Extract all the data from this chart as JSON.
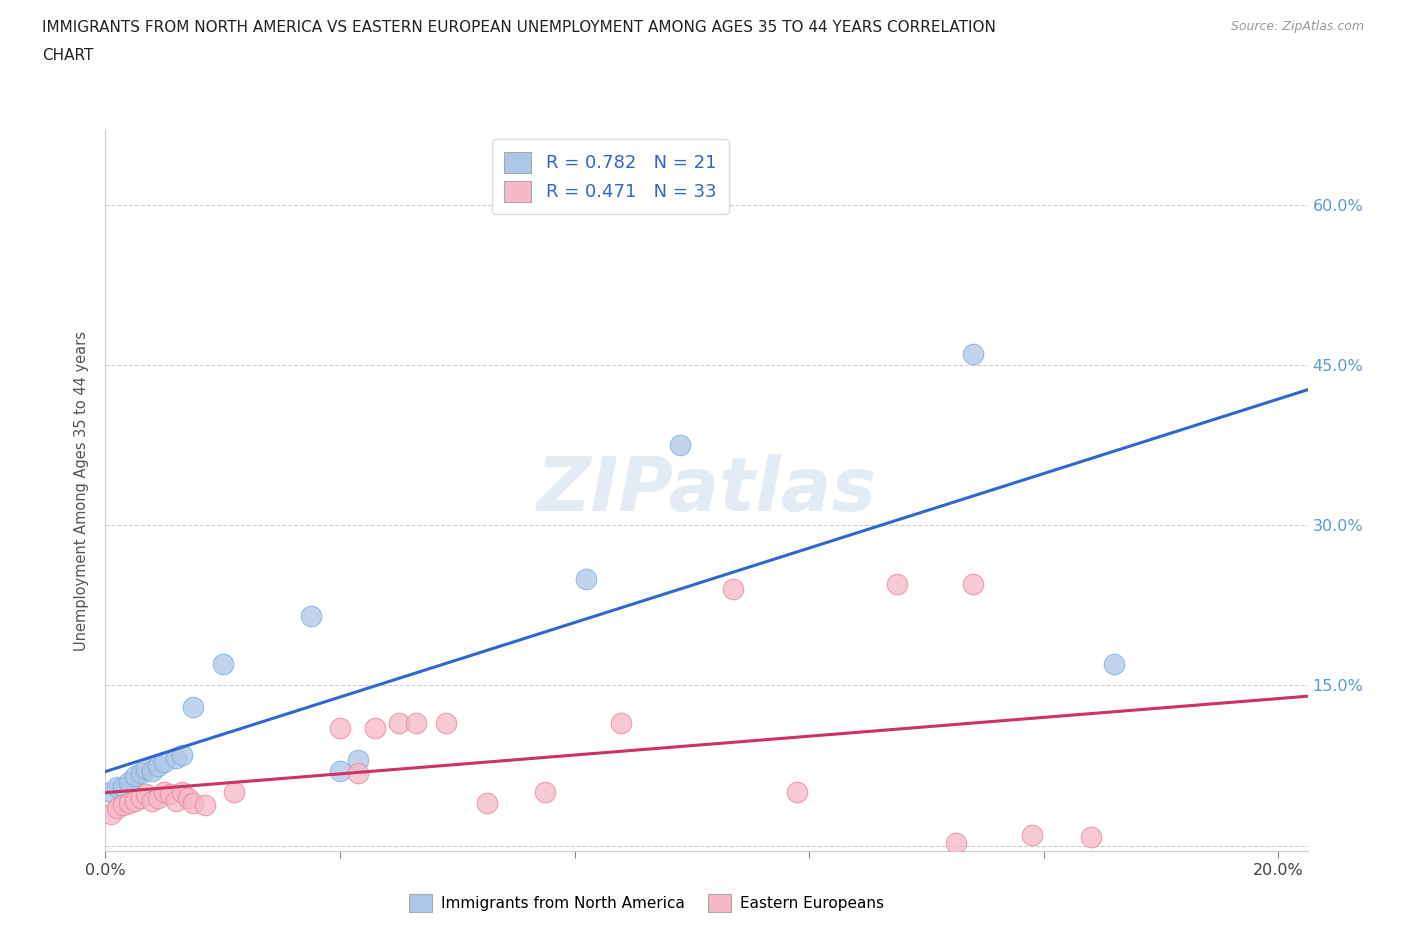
{
  "title_line1": "IMMIGRANTS FROM NORTH AMERICA VS EASTERN EUROPEAN UNEMPLOYMENT AMONG AGES 35 TO 44 YEARS CORRELATION",
  "title_line2": "CHART",
  "source": "Source: ZipAtlas.com",
  "ylabel": "Unemployment Among Ages 35 to 44 years",
  "xlim": [
    0.0,
    0.205
  ],
  "ylim": [
    -0.005,
    0.67
  ],
  "xticks": [
    0.0,
    0.04,
    0.08,
    0.12,
    0.16,
    0.2
  ],
  "xticklabels_show": [
    "0.0%",
    "",
    "",
    "",
    "",
    "20.0%"
  ],
  "yticks": [
    0.0,
    0.15,
    0.3,
    0.45,
    0.6
  ],
  "yticklabels_right": [
    "",
    "15.0%",
    "30.0%",
    "45.0%",
    "60.0%"
  ],
  "blue_fill_color": "#aec6e8",
  "pink_fill_color": "#f4b8c8",
  "blue_edge_color": "#7dafd8",
  "pink_edge_color": "#e8889a",
  "blue_line_color": "#3366cc",
  "pink_line_color": "#cc3366",
  "blue_label": "Immigrants from North America",
  "pink_label": "Eastern Europeans",
  "legend_r1": "R = 0.782   N = 21",
  "legend_r2": "R = 0.471   N = 33",
  "watermark": "ZIPatlas",
  "blue_points": [
    [
      0.001,
      0.05
    ],
    [
      0.002,
      0.055
    ],
    [
      0.003,
      0.055
    ],
    [
      0.004,
      0.06
    ],
    [
      0.005,
      0.065
    ],
    [
      0.006,
      0.068
    ],
    [
      0.007,
      0.072
    ],
    [
      0.008,
      0.07
    ],
    [
      0.009,
      0.075
    ],
    [
      0.01,
      0.078
    ],
    [
      0.012,
      0.082
    ],
    [
      0.013,
      0.085
    ],
    [
      0.015,
      0.13
    ],
    [
      0.02,
      0.17
    ],
    [
      0.035,
      0.215
    ],
    [
      0.04,
      0.07
    ],
    [
      0.043,
      0.08
    ],
    [
      0.082,
      0.25
    ],
    [
      0.098,
      0.375
    ],
    [
      0.148,
      0.46
    ],
    [
      0.172,
      0.17
    ]
  ],
  "pink_points": [
    [
      0.001,
      0.03
    ],
    [
      0.002,
      0.035
    ],
    [
      0.003,
      0.038
    ],
    [
      0.004,
      0.04
    ],
    [
      0.005,
      0.042
    ],
    [
      0.006,
      0.045
    ],
    [
      0.007,
      0.048
    ],
    [
      0.008,
      0.042
    ],
    [
      0.009,
      0.045
    ],
    [
      0.01,
      0.05
    ],
    [
      0.011,
      0.048
    ],
    [
      0.012,
      0.042
    ],
    [
      0.013,
      0.05
    ],
    [
      0.014,
      0.045
    ],
    [
      0.015,
      0.04
    ],
    [
      0.017,
      0.038
    ],
    [
      0.022,
      0.05
    ],
    [
      0.04,
      0.11
    ],
    [
      0.043,
      0.068
    ],
    [
      0.046,
      0.11
    ],
    [
      0.05,
      0.115
    ],
    [
      0.053,
      0.115
    ],
    [
      0.058,
      0.115
    ],
    [
      0.065,
      0.04
    ],
    [
      0.075,
      0.05
    ],
    [
      0.088,
      0.115
    ],
    [
      0.107,
      0.24
    ],
    [
      0.118,
      0.05
    ],
    [
      0.135,
      0.245
    ],
    [
      0.148,
      0.245
    ],
    [
      0.158,
      0.01
    ],
    [
      0.168,
      0.008
    ],
    [
      0.145,
      0.002
    ]
  ]
}
